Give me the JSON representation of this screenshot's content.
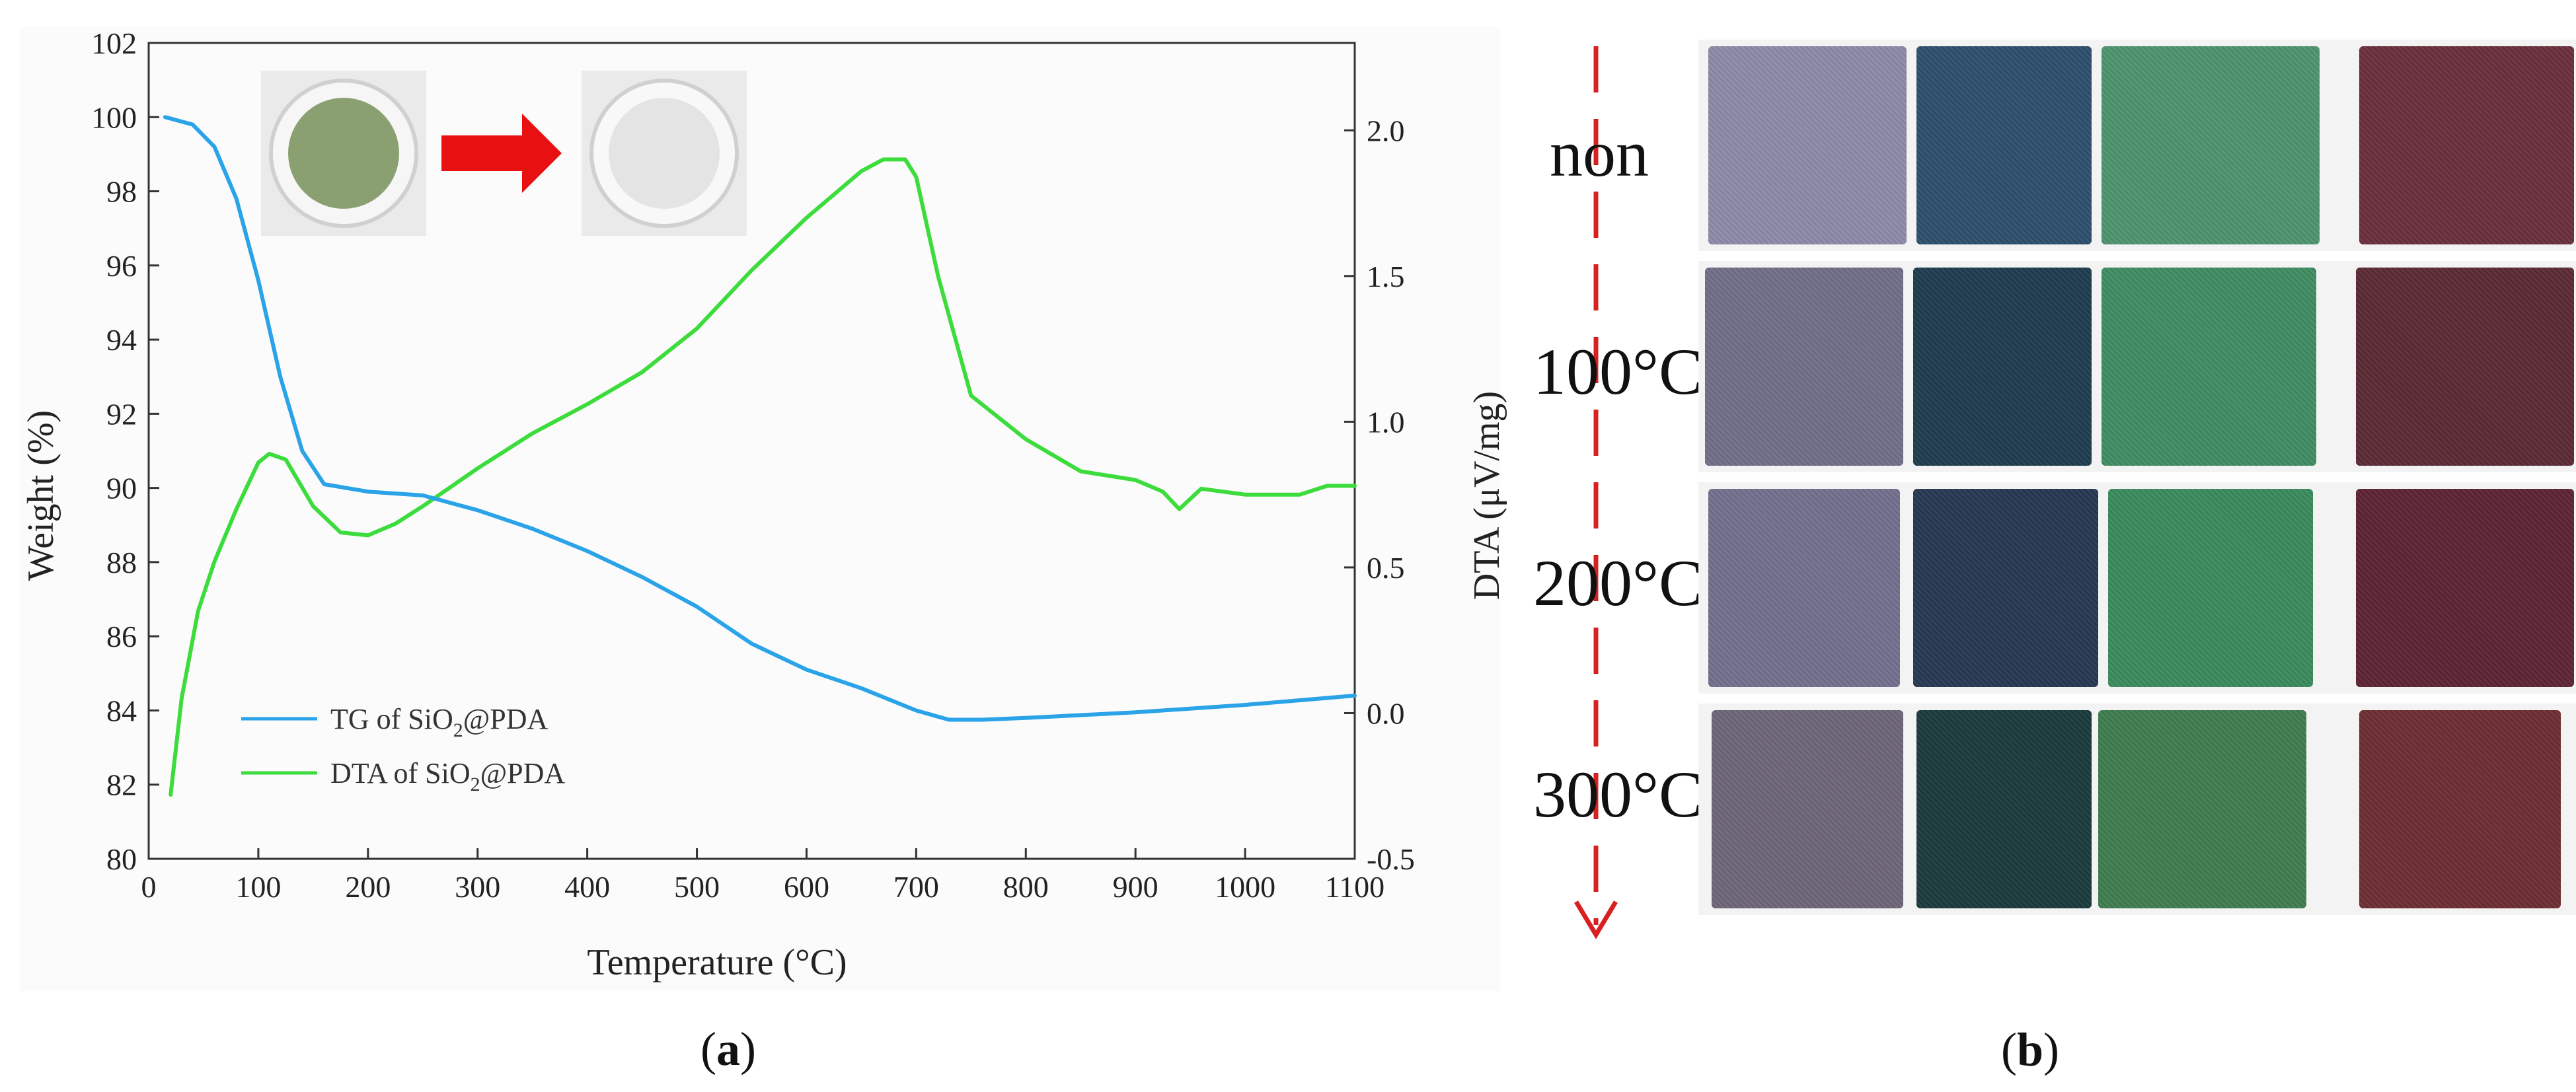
{
  "chart_data": {
    "type": "line",
    "panel": "a",
    "xlabel": "Temperature (°C)",
    "ylabel_left": "Weight (%)",
    "ylabel_right": "DTA (μV/mg)",
    "xlim": [
      0,
      1100
    ],
    "ylim_left": [
      80,
      102
    ],
    "ylim_right": [
      -0.5,
      2.3
    ],
    "x_ticks": [
      0,
      100,
      200,
      300,
      400,
      500,
      600,
      700,
      800,
      900,
      1000,
      1100
    ],
    "y_left_ticks": [
      80,
      82,
      84,
      86,
      88,
      90,
      92,
      94,
      96,
      98,
      100,
      102
    ],
    "y_right_ticks": [
      "-0.5",
      "0.0",
      "0.5",
      "1.0",
      "1.5",
      "2.0"
    ],
    "series": [
      {
        "name": "TG of SiO2@PDA",
        "legend_main": "TG of SiO",
        "legend_sub": "2",
        "legend_tail": "@PDA",
        "axis": "left",
        "color": "#2aa3e8",
        "x": [
          15,
          40,
          60,
          80,
          100,
          120,
          140,
          160,
          200,
          250,
          300,
          350,
          400,
          450,
          500,
          550,
          600,
          650,
          700,
          730,
          760,
          800,
          900,
          1000,
          1100
        ],
        "y": [
          100.0,
          99.8,
          99.2,
          97.8,
          95.6,
          93.0,
          91.0,
          90.1,
          89.9,
          89.8,
          89.4,
          88.9,
          88.3,
          87.6,
          86.8,
          85.8,
          85.1,
          84.6,
          84.0,
          83.75,
          83.75,
          83.8,
          83.95,
          84.15,
          84.4
        ]
      },
      {
        "name": "DTA of SiO2@PDA",
        "legend_main": "DTA of SiO",
        "legend_sub": "2",
        "legend_tail": "@PDA",
        "axis": "right",
        "color": "#3ddc3d",
        "x": [
          20,
          30,
          45,
          60,
          80,
          100,
          110,
          125,
          150,
          175,
          200,
          225,
          250,
          300,
          350,
          400,
          450,
          500,
          550,
          600,
          650,
          670,
          690,
          700,
          720,
          750,
          800,
          850,
          900,
          925,
          940,
          960,
          1000,
          1050,
          1075,
          1100
        ],
        "y": [
          -0.28,
          0.05,
          0.35,
          0.52,
          0.7,
          0.86,
          0.89,
          0.87,
          0.71,
          0.62,
          0.61,
          0.65,
          0.71,
          0.84,
          0.96,
          1.06,
          1.17,
          1.32,
          1.52,
          1.7,
          1.86,
          1.9,
          1.9,
          1.84,
          1.5,
          1.09,
          0.94,
          0.83,
          0.8,
          0.76,
          0.7,
          0.77,
          0.75,
          0.75,
          0.78,
          0.78
        ]
      }
    ],
    "legend_position": "bottom-left"
  },
  "panel_b": {
    "temperature_labels": [
      "non",
      "100°C",
      "200°C",
      "300°C"
    ],
    "fabric_rows": [
      [
        "#8d8aa8",
        "#2d4f6e",
        "#4e9470",
        "#6a2f3c"
      ],
      [
        "#716f89",
        "#1f3c4e",
        "#3f8c62",
        "#5a2a35"
      ],
      [
        "#72708d",
        "#263852",
        "#3b8a5c",
        "#5e2434"
      ],
      [
        "#6e6677",
        "#1b3a3c",
        "#3f7d50",
        "#6d2e32"
      ]
    ]
  },
  "inset": {
    "before_color": "#8aa070",
    "after_color": "#e4e4e4",
    "arrow_color": "#e81010"
  },
  "captions": {
    "a_open": "(",
    "a_letter": "a",
    "a_close": ")",
    "b_open": "(",
    "b_letter": "b",
    "b_close": ")"
  }
}
